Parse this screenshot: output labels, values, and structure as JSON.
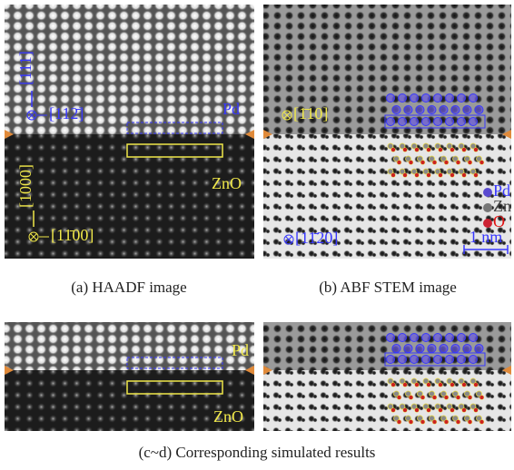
{
  "panel_a": {
    "zone_top": "[111]",
    "zone_right": "[112̄]",
    "pd": "Pd",
    "zone_bottom": "[1000]",
    "zno": "ZnO",
    "zone_bottom_right": "[11̄00]",
    "caption": "(a) HAADF image"
  },
  "panel_b": {
    "zone_top": "[1̄10]",
    "zone_bottom": "[11̄20]",
    "legend": [
      "Pd",
      "Zn",
      "O"
    ],
    "scale": "1 nm",
    "caption": "(b) ABF STEM image"
  },
  "panel_c": {
    "pd": "Pd",
    "zno": "ZnO"
  },
  "caption_cd": "(c~d) Corresponding simulated results"
}
